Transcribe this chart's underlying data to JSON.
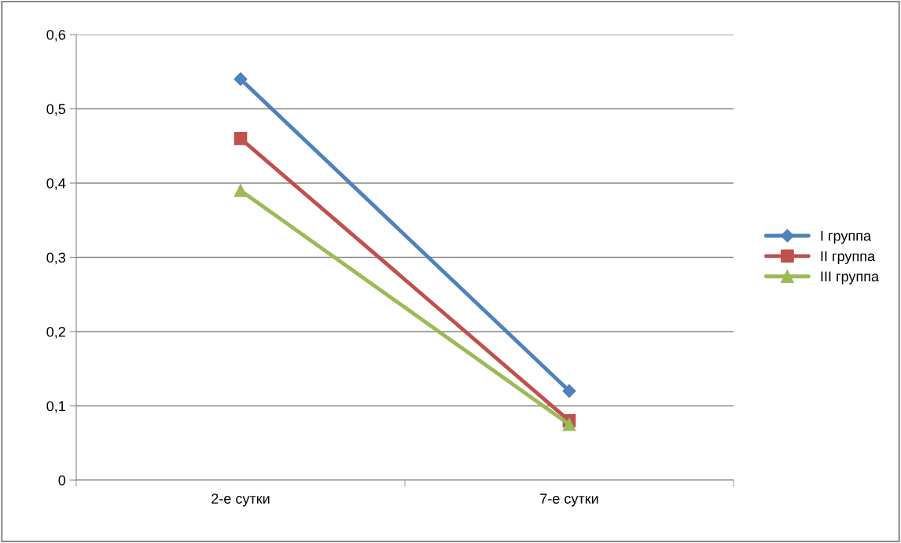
{
  "chart_data": {
    "type": "line",
    "categories": [
      "2-е сутки",
      "7-е сутки"
    ],
    "series": [
      {
        "name": "I группа",
        "color": "#4f81bd",
        "marker": "diamond",
        "values": [
          0.54,
          0.12
        ]
      },
      {
        "name": "II группа",
        "color": "#c0504d",
        "marker": "square",
        "values": [
          0.46,
          0.08
        ]
      },
      {
        "name": "III группа",
        "color": "#9bbb59",
        "marker": "triangle",
        "values": [
          0.39,
          0.075
        ]
      }
    ],
    "ylim": [
      0,
      0.6
    ],
    "yticks": [
      0,
      {
        "value": 0.1,
        "label": "0,1"
      },
      {
        "value": 0.2,
        "label": "0,2"
      },
      {
        "value": 0.3,
        "label": "0,3"
      },
      {
        "value": 0.4,
        "label": "0,4"
      },
      {
        "value": 0.5,
        "label": "0,5"
      },
      {
        "value": 0.6,
        "label": "0,6"
      }
    ],
    "grid": "y",
    "legend": "right",
    "line_style": "solid"
  }
}
